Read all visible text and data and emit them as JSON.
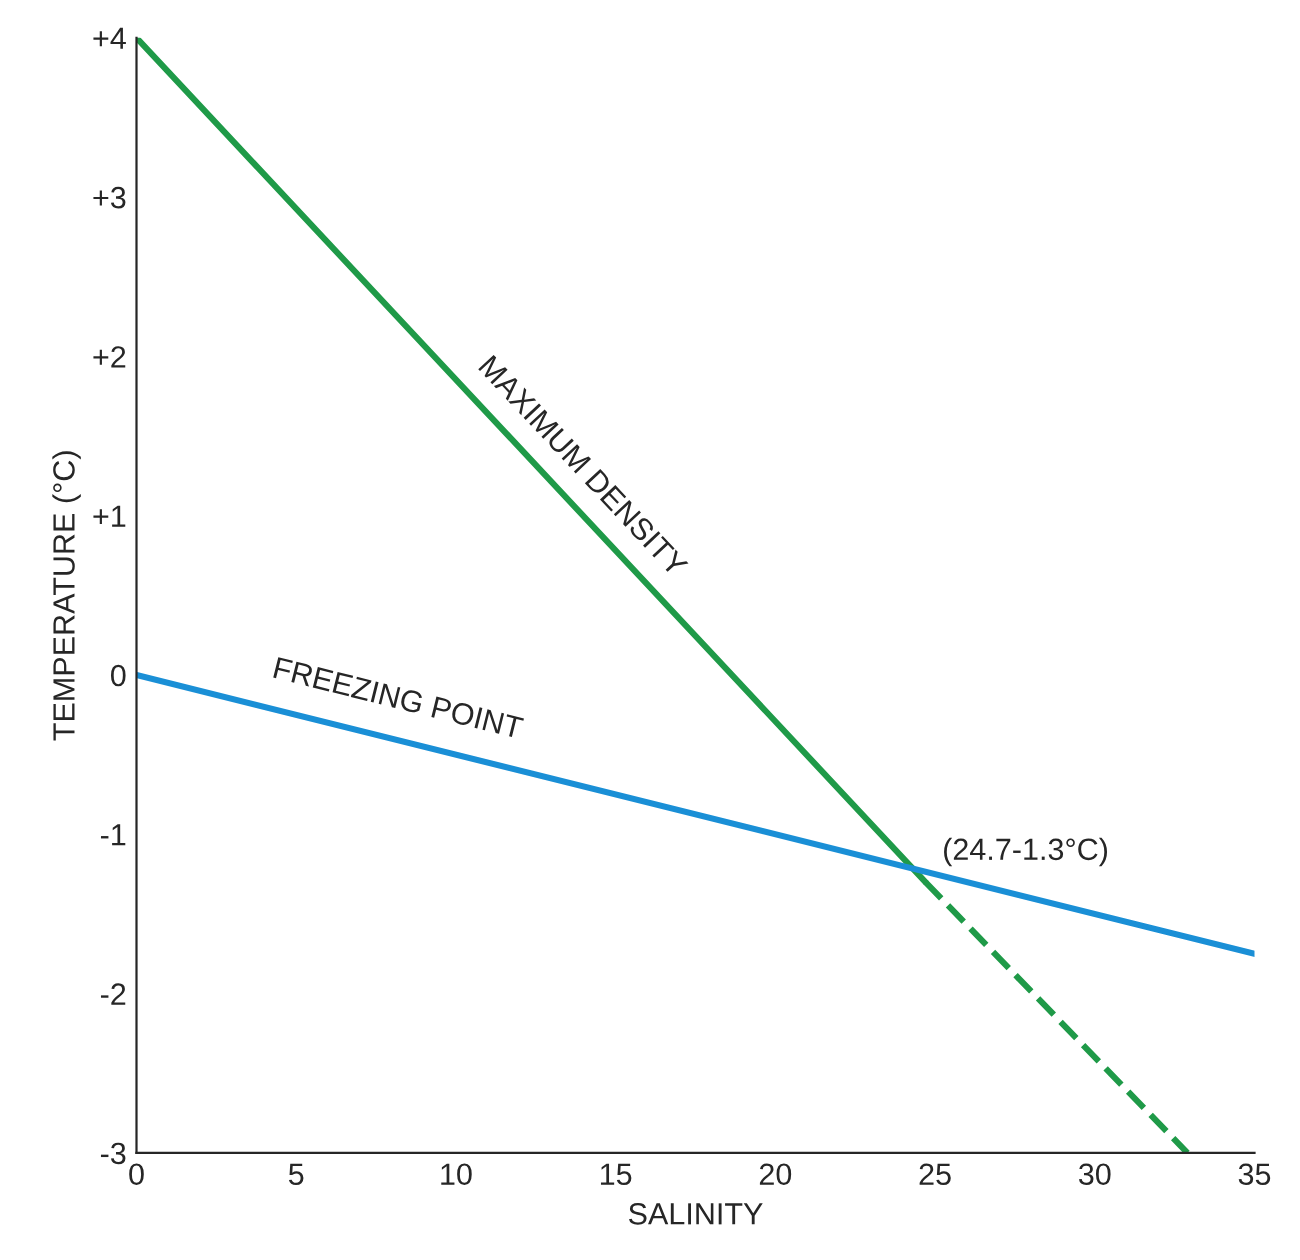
{
  "chart_data": {
    "type": "line",
    "xlabel": "SALINITY",
    "ylabel": "TEMPERATURE (°C)",
    "xlim": [
      0,
      35
    ],
    "xticks": [
      0,
      5,
      10,
      15,
      20,
      25,
      30,
      35
    ],
    "ylim": [
      -3,
      4
    ],
    "yticks": [
      {
        "value": 4,
        "label": "+4"
      },
      {
        "value": 3,
        "label": "+3"
      },
      {
        "value": 2,
        "label": "+2"
      },
      {
        "value": 1,
        "label": "+1"
      },
      0,
      -1,
      -2,
      -3
    ],
    "grid": false,
    "legend": false,
    "marker": "none",
    "series": [
      {
        "name": "MAXIMUM DENSITY",
        "color": "#1f9a48",
        "x": [
          0,
          24.7
        ],
        "values": [
          4,
          -1.3
        ],
        "line_style": "solid"
      },
      {
        "color": "#1f9a48",
        "x": [
          24.7,
          32.9
        ],
        "values": [
          -1.3,
          -3
        ],
        "line_style": "dashed"
      },
      {
        "name": "FREEZING POINT",
        "color": "#1a8fd6",
        "x": [
          0,
          35
        ],
        "values": [
          0,
          -1.75
        ],
        "line_style": "solid"
      }
    ],
    "annotations": [
      {
        "text": "(24.7-1.3°C)",
        "x": 24.7,
        "y": -1.3
      }
    ]
  }
}
